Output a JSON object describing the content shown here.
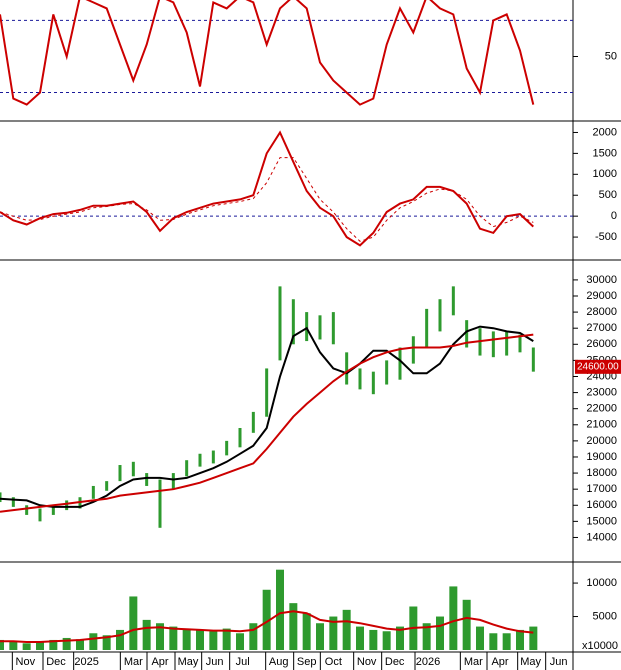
{
  "chart_data": [
    {
      "type": "line",
      "x": [
        0,
        10,
        20,
        30,
        40,
        50,
        60,
        70,
        80,
        90,
        100,
        110,
        120,
        130,
        140,
        150,
        160,
        170,
        180,
        190,
        200,
        210,
        220,
        230,
        240,
        250,
        260,
        270,
        280,
        290,
        300,
        310,
        320,
        330,
        340,
        350,
        360,
        370,
        380,
        390,
        400
      ],
      "xlim": [
        0,
        435
      ],
      "ylim": [
        -2,
        97
      ],
      "yticks": [
        50
      ],
      "ref_lines": [
        80,
        20
      ],
      "series": [
        {
          "color": "#cc0000",
          "values": [
            85,
            15,
            10,
            20,
            85,
            50,
            100,
            95,
            90,
            60,
            30,
            60,
            100,
            95,
            70,
            25,
            95,
            90,
            100,
            95,
            60,
            90,
            100,
            90,
            45,
            30,
            20,
            10,
            15,
            60,
            90,
            70,
            100,
            90,
            85,
            40,
            20,
            80,
            85,
            55,
            10
          ]
        }
      ]
    },
    {
      "type": "line",
      "x": [
        0,
        10,
        20,
        30,
        40,
        50,
        60,
        70,
        80,
        90,
        100,
        110,
        120,
        130,
        140,
        150,
        160,
        170,
        180,
        190,
        200,
        210,
        220,
        230,
        240,
        250,
        260,
        270,
        280,
        290,
        300,
        310,
        320,
        330,
        340,
        350,
        360,
        370,
        380,
        390,
        400
      ],
      "xlim": [
        0,
        435
      ],
      "ylim": [
        -1000,
        2250
      ],
      "yticks": [
        2000,
        1500,
        1000,
        500,
        0,
        -500
      ],
      "ref_lines": [
        0
      ],
      "series": [
        {
          "color": "#cc0000",
          "values": [
            100,
            -100,
            -200,
            -50,
            50,
            80,
            150,
            250,
            250,
            300,
            350,
            100,
            -350,
            -50,
            100,
            200,
            300,
            350,
            400,
            500,
            1500,
            2000,
            1300,
            600,
            200,
            0,
            -500,
            -700,
            -400,
            100,
            300,
            400,
            700,
            700,
            600,
            300,
            -300,
            -400,
            0,
            50,
            -250
          ]
        },
        {
          "color": "#cc0000",
          "dash": true,
          "values": [
            100,
            0,
            -100,
            -80,
            0,
            50,
            100,
            200,
            230,
            280,
            300,
            150,
            -100,
            -80,
            50,
            150,
            250,
            300,
            350,
            420,
            800,
            1400,
            1400,
            900,
            400,
            100,
            -300,
            -600,
            -500,
            -100,
            200,
            350,
            550,
            650,
            600,
            400,
            0,
            -250,
            -150,
            0,
            -150
          ]
        }
      ]
    },
    {
      "type": "ohlc",
      "x": [
        0,
        10,
        20,
        30,
        40,
        50,
        60,
        70,
        80,
        90,
        100,
        110,
        120,
        130,
        140,
        150,
        160,
        170,
        180,
        190,
        200,
        210,
        220,
        230,
        240,
        250,
        260,
        270,
        280,
        290,
        300,
        310,
        320,
        330,
        340,
        350,
        360,
        370,
        380,
        390,
        400
      ],
      "xlim": [
        0,
        435
      ],
      "ylim": [
        12600,
        31050
      ],
      "yticks": [
        30000,
        29000,
        28000,
        27000,
        26000,
        25000,
        24000,
        23000,
        22000,
        21000,
        20000,
        19000,
        18000,
        17000,
        16000,
        15000,
        14000
      ],
      "color": "#2e9a2e",
      "high": [
        16800,
        16500,
        16000,
        15800,
        16000,
        16300,
        16500,
        17200,
        17500,
        18500,
        18700,
        18000,
        17600,
        18000,
        18800,
        19200,
        19400,
        20000,
        20800,
        21800,
        24500,
        29600,
        28800,
        28000,
        27800,
        28000,
        25500,
        24500,
        24300,
        25000,
        25800,
        26500,
        28200,
        28800,
        29600,
        27500,
        27000,
        26800,
        26800,
        26600,
        25800
      ],
      "low": [
        16200,
        15900,
        15400,
        15000,
        15400,
        15700,
        15800,
        16400,
        16900,
        17500,
        17800,
        17200,
        14600,
        17000,
        17800,
        18400,
        18600,
        19100,
        19600,
        20500,
        21500,
        25000,
        26000,
        26200,
        26300,
        26000,
        23500,
        23200,
        22900,
        23500,
        23800,
        24800,
        25800,
        26800,
        27800,
        25800,
        25300,
        25200,
        25300,
        25500,
        24300
      ],
      "last_price": {
        "value": 24600,
        "label": "24600.00"
      },
      "series": [
        {
          "color": "#000000",
          "values": [
            16400,
            16350,
            16300,
            16000,
            15900,
            15900,
            15900,
            16200,
            16600,
            17200,
            17600,
            17700,
            17700,
            17600,
            17700,
            18000,
            18300,
            18700,
            19200,
            19700,
            20800,
            24000,
            26500,
            27000,
            25500,
            24500,
            24200,
            24800,
            25600,
            25600,
            25000,
            24200,
            24200,
            24800,
            26000,
            26800,
            27100,
            27000,
            26800,
            26700,
            26200
          ]
        },
        {
          "color": "#cc0000",
          "values": [
            15600,
            15700,
            15800,
            15900,
            16000,
            16100,
            16200,
            16300,
            16400,
            16600,
            16700,
            16800,
            16900,
            17000,
            17200,
            17400,
            17700,
            18000,
            18300,
            18600,
            19500,
            20500,
            21500,
            22300,
            23000,
            23700,
            24300,
            24800,
            25200,
            25500,
            25700,
            25800,
            25800,
            25800,
            25900,
            26100,
            26200,
            26300,
            26400,
            26500,
            26600
          ]
        }
      ]
    },
    {
      "type": "bar",
      "x": [
        0,
        10,
        20,
        30,
        40,
        50,
        60,
        70,
        80,
        90,
        100,
        110,
        120,
        130,
        140,
        150,
        160,
        170,
        180,
        190,
        200,
        210,
        220,
        230,
        240,
        250,
        260,
        270,
        280,
        290,
        300,
        310,
        320,
        330,
        340,
        350,
        360,
        370,
        380,
        390,
        400
      ],
      "xlim": [
        0,
        435
      ],
      "ylim": [
        0,
        12700
      ],
      "yticks": [
        10000,
        5000
      ],
      "unit_label": "x10000",
      "color": "#2e9a2e",
      "values": [
        1500,
        1200,
        1000,
        1300,
        1500,
        1800,
        1600,
        2500,
        2200,
        3000,
        8000,
        4500,
        4000,
        3500,
        3000,
        3000,
        2800,
        3200,
        2500,
        4000,
        9000,
        12000,
        7000,
        5500,
        4000,
        5000,
        6000,
        3500,
        3000,
        2800,
        3500,
        6500,
        4000,
        5000,
        9500,
        7500,
        3500,
        2500,
        2500,
        3000,
        3500
      ],
      "series": [
        {
          "color": "#cc0000",
          "values": [
            1300,
            1300,
            1200,
            1200,
            1300,
            1400,
            1500,
            1700,
            1900,
            2200,
            3000,
            3300,
            3400,
            3200,
            3100,
            3000,
            2900,
            2900,
            2800,
            3000,
            4200,
            5500,
            5800,
            5500,
            4500,
            4200,
            4300,
            4000,
            3600,
            3200,
            3000,
            3300,
            3400,
            3600,
            4300,
            4800,
            4500,
            3800,
            3200,
            2800,
            2600
          ]
        }
      ],
      "xticks": [
        {
          "value": 19,
          "label": "Nov"
        },
        {
          "value": 42,
          "label": "Dec"
        },
        {
          "value": 65,
          "label": "2025"
        },
        {
          "value": 100,
          "label": "Mar"
        },
        {
          "value": 120,
          "label": "Apr"
        },
        {
          "value": 141,
          "label": "May"
        },
        {
          "value": 161,
          "label": "Jun"
        },
        {
          "value": 182,
          "label": "Jul"
        },
        {
          "value": 209,
          "label": "Aug"
        },
        {
          "value": 230,
          "label": "Sep"
        },
        {
          "value": 250,
          "label": "Oct"
        },
        {
          "value": 275,
          "label": "Nov"
        },
        {
          "value": 296,
          "label": "Dec"
        },
        {
          "value": 321,
          "label": "2026"
        },
        {
          "value": 355,
          "label": "Mar"
        },
        {
          "value": 375,
          "label": "Apr"
        },
        {
          "value": 398,
          "label": "May"
        },
        {
          "value": 419,
          "label": "Jun"
        }
      ]
    }
  ]
}
